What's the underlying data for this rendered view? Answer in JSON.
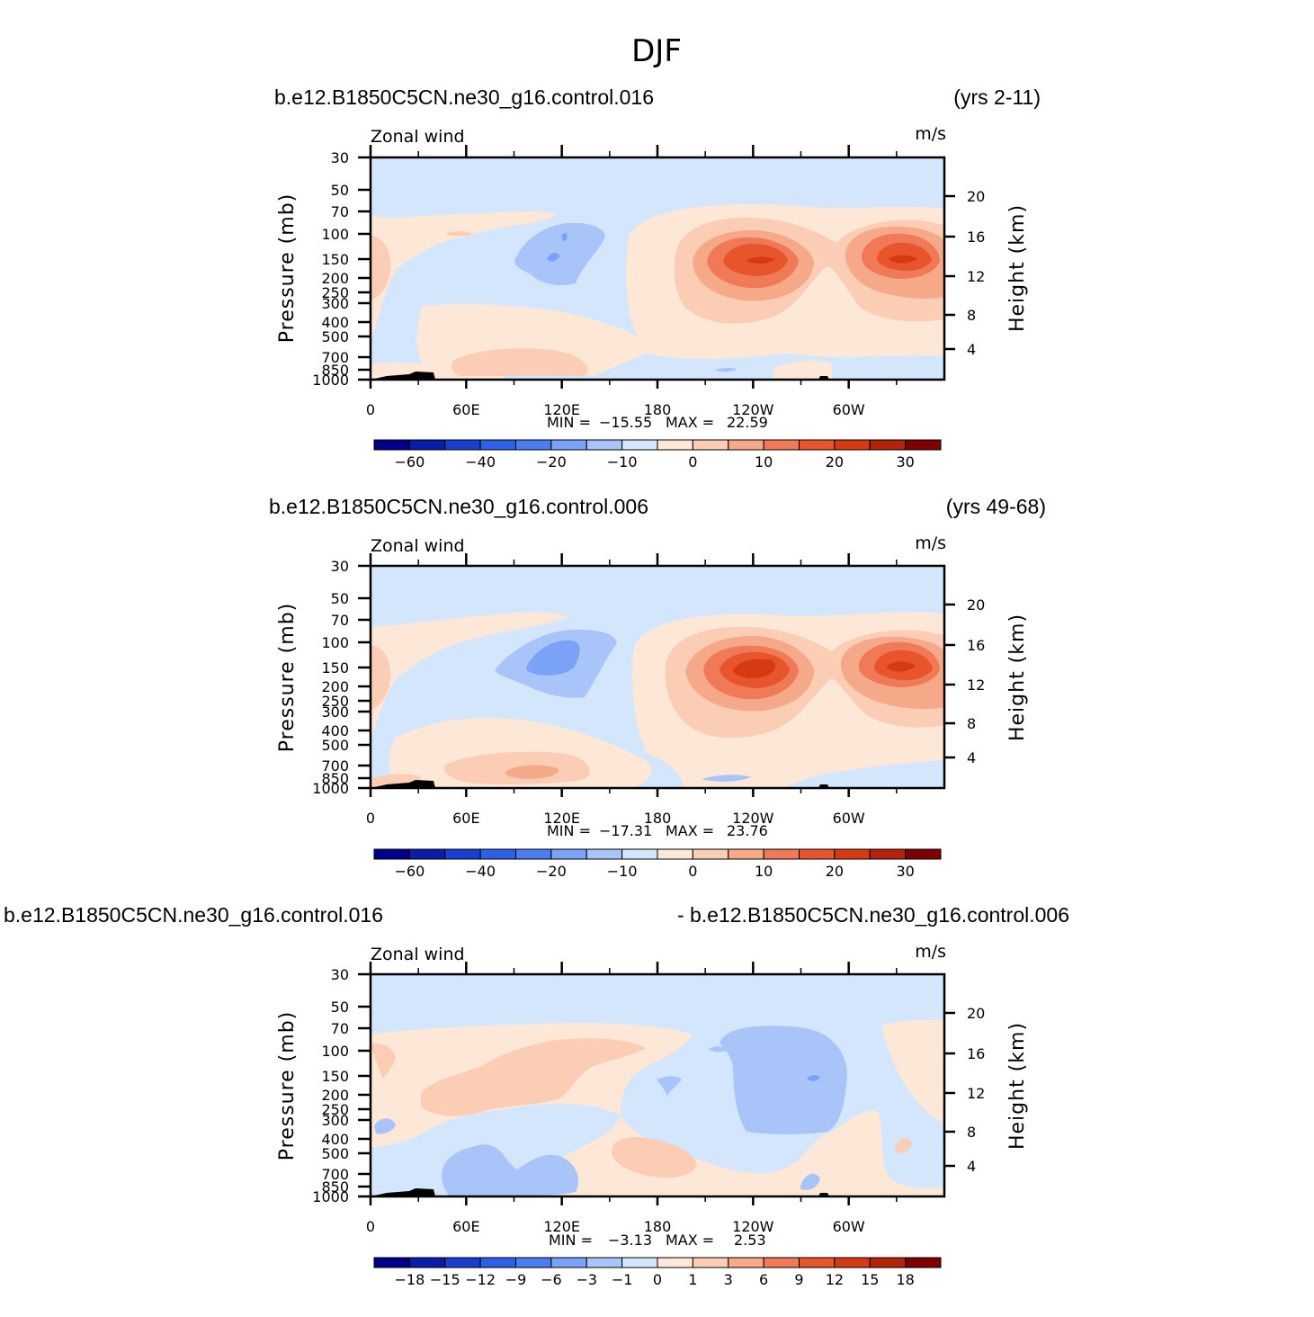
{
  "figure": {
    "title": "DJF"
  },
  "chart_data": [
    {
      "type": "heatmap",
      "left_title": "b.e12.B1850C5CN.ne30_g16.control.016",
      "right_title": "(yrs 2-11)",
      "variable_label": "Zonal wind",
      "units_label": "m/s",
      "ylabel": "Pressure (mb)",
      "ylabel_right": "Height (km)",
      "x_ticks": [
        "0",
        "60E",
        "120E",
        "180",
        "120W",
        "60W"
      ],
      "y_ticks": [
        "30",
        "50",
        "70",
        "100",
        "150",
        "200",
        "250",
        "300",
        "400",
        "500",
        "700",
        "850",
        "1000"
      ],
      "y_ticks_right": [
        "20",
        "16",
        "12",
        "8",
        "4"
      ],
      "min_label": "MIN =",
      "min_value": "−15.55",
      "max_label": "MAX =",
      "max_value": "22.59",
      "colorbar_labels": [
        "−60",
        "−40",
        "−20",
        "−10",
        "0",
        "10",
        "20",
        "30"
      ],
      "contour_levels": [
        -70,
        -60,
        -50,
        -40,
        -30,
        -20,
        -15,
        -10,
        -5,
        0,
        5,
        10,
        15,
        20,
        25,
        30,
        35
      ],
      "features": [
        {
          "kind": "jet",
          "lon": 160,
          "p": 150,
          "peak": 22.59
        },
        {
          "kind": "jet",
          "lon": 286,
          "p": 150,
          "peak": 20
        },
        {
          "kind": "easterly",
          "lon": 110,
          "p": 150,
          "min": -15.55
        }
      ]
    },
    {
      "type": "heatmap",
      "left_title": "b.e12.B1850C5CN.ne30_g16.control.006",
      "right_title": "(yrs 49-68)",
      "variable_label": "Zonal wind",
      "units_label": "m/s",
      "ylabel": "Pressure (mb)",
      "ylabel_right": "Height (km)",
      "x_ticks": [
        "0",
        "60E",
        "120E",
        "180",
        "120W",
        "60W"
      ],
      "y_ticks": [
        "30",
        "50",
        "70",
        "100",
        "150",
        "200",
        "250",
        "300",
        "400",
        "500",
        "700",
        "850",
        "1000"
      ],
      "y_ticks_right": [
        "20",
        "16",
        "12",
        "8",
        "4"
      ],
      "min_label": "MIN =",
      "min_value": "−17.31",
      "max_label": "MAX =",
      "max_value": "23.76",
      "colorbar_labels": [
        "−60",
        "−40",
        "−20",
        "−10",
        "0",
        "10",
        "20",
        "30"
      ],
      "contour_levels": [
        -70,
        -60,
        -50,
        -40,
        -30,
        -20,
        -15,
        -10,
        -5,
        0,
        5,
        10,
        15,
        20,
        25,
        30,
        35
      ],
      "features": [
        {
          "kind": "jet",
          "lon": 165,
          "p": 150,
          "peak": 23.76
        },
        {
          "kind": "jet",
          "lon": 285,
          "p": 150,
          "peak": 21
        },
        {
          "kind": "easterly",
          "lon": 115,
          "p": 120,
          "min": -17.31
        }
      ]
    },
    {
      "type": "heatmap",
      "left_title": "b.e12.B1850C5CN.ne30_g16.control.016",
      "right_title": "- b.e12.B1850C5CN.ne30_g16.control.006",
      "variable_label": "Zonal wind",
      "units_label": "m/s",
      "ylabel": "Pressure (mb)",
      "ylabel_right": "Height (km)",
      "x_ticks": [
        "0",
        "60E",
        "120E",
        "180",
        "120W",
        "60W"
      ],
      "y_ticks": [
        "30",
        "50",
        "70",
        "100",
        "150",
        "200",
        "250",
        "300",
        "400",
        "500",
        "700",
        "850",
        "1000"
      ],
      "y_ticks_right": [
        "20",
        "16",
        "12",
        "8",
        "4"
      ],
      "min_label": "MIN =",
      "min_value": "−3.13",
      "max_label": "MAX =",
      "max_value": "2.53",
      "colorbar_labels": [
        "−18",
        "−15",
        "−12",
        "−9",
        "−6",
        "−3",
        "−1",
        "0",
        "1",
        "3",
        "6",
        "9",
        "12",
        "15",
        "18"
      ],
      "contour_levels": [
        -21,
        -18,
        -15,
        -12,
        -9,
        -6,
        -3,
        -1,
        0,
        1,
        3,
        6,
        9,
        12,
        15,
        18,
        21
      ],
      "features": [
        {
          "kind": "negative",
          "lon": 240,
          "p": 200,
          "min": -3.13
        },
        {
          "kind": "positive",
          "lon": 100,
          "p": 180,
          "max": 2.53
        }
      ]
    }
  ],
  "colors": {
    "colorbar": [
      "#00008a",
      "#0a1da8",
      "#1a3fd0",
      "#2d5fe8",
      "#4a7cf2",
      "#7aa2f7",
      "#a9c4f8",
      "#d3e6fb",
      "#fde8d8",
      "#fbcdb4",
      "#f6a989",
      "#f07a58",
      "#e8552d",
      "#d63a12",
      "#b62209",
      "#7e0000"
    ],
    "pos1": "#fde8d8",
    "pos2": "#fbcdb4",
    "pos3": "#f6a989",
    "pos4": "#f07a58",
    "pos5": "#e8552d",
    "pos6": "#d63a12",
    "neg1": "#d3e6fb",
    "neg2": "#a9c4f8",
    "neg3": "#7aa2f7"
  }
}
